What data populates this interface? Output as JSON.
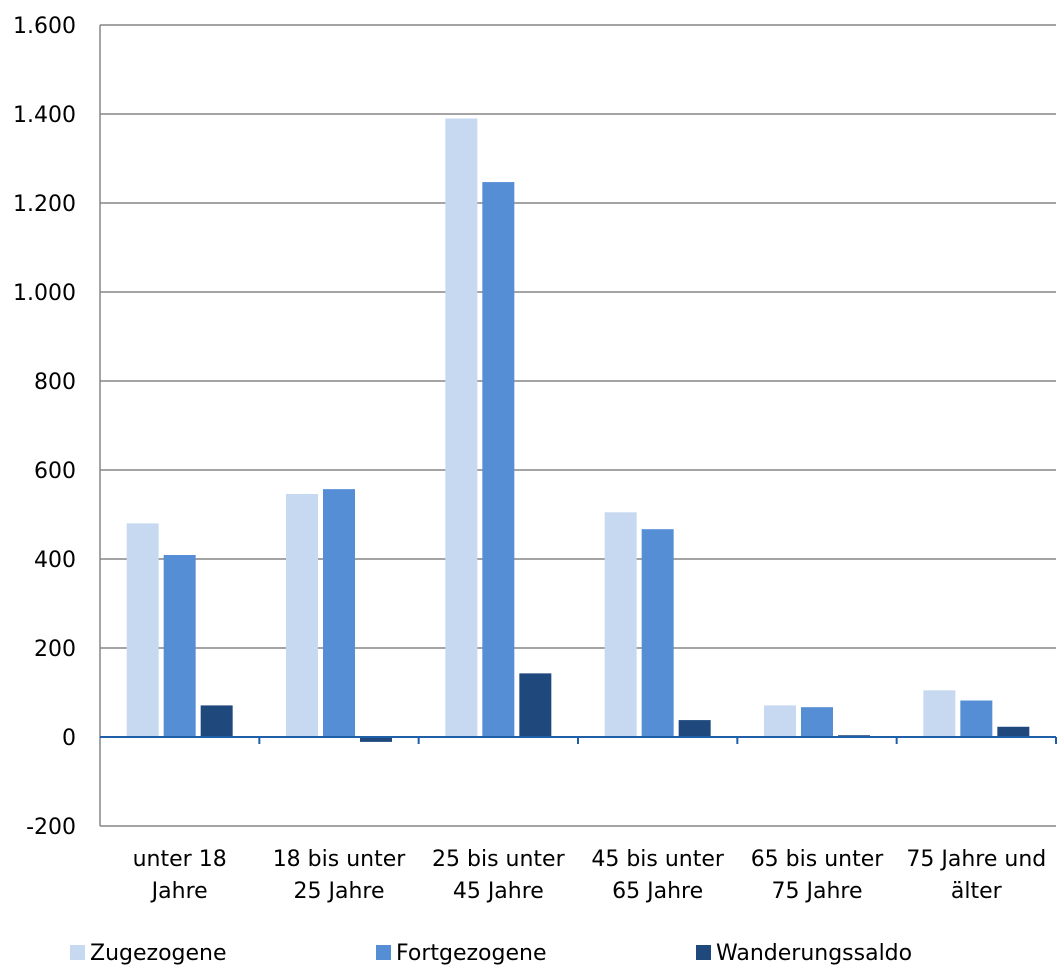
{
  "chart_data": {
    "type": "bar",
    "categories": [
      [
        "unter 18",
        "Jahre"
      ],
      [
        "18 bis unter",
        "25 Jahre"
      ],
      [
        "25 bis unter",
        "45 Jahre"
      ],
      [
        "45 bis unter",
        "65 Jahre"
      ],
      [
        "65 bis unter",
        "75 Jahre"
      ],
      [
        "75 Jahre und",
        "älter"
      ]
    ],
    "series": [
      {
        "name": "Zugezogene",
        "color": "#c6d9f1",
        "values": [
          480,
          546,
          1390,
          505,
          71,
          105
        ]
      },
      {
        "name": "Fortgezogene",
        "color": "#558ed5",
        "values": [
          409,
          557,
          1247,
          467,
          67,
          82
        ]
      },
      {
        "name": "Wanderungssaldo",
        "color": "#1f497d",
        "values": [
          71,
          -11,
          143,
          38,
          4,
          23
        ]
      }
    ],
    "ylim": [
      -200,
      1600
    ],
    "yticks": [
      -200,
      0,
      200,
      400,
      600,
      800,
      1000,
      1200,
      1400,
      1600
    ],
    "ytick_labels": [
      "-200",
      "0",
      "200",
      "400",
      "600",
      "800",
      "1.000",
      "1.200",
      "1.400",
      "1.600"
    ],
    "grid": true,
    "legend_position": "bottom",
    "gridline_color": "#868686",
    "axis_color": "#1f5fa8"
  }
}
